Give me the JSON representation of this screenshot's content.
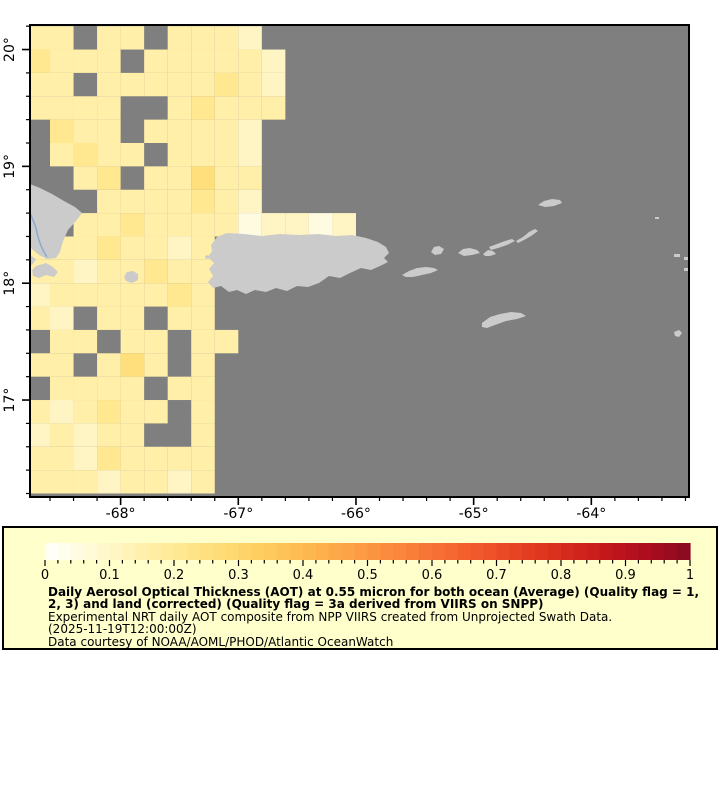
{
  "map": {
    "colors": {
      "ocean_nodata": "#7F7F7F",
      "land": "#CBCBCB",
      "river": "#85A9CE",
      "frame": "#000000",
      "background": "#FFFFFF"
    },
    "x_axis": {
      "range_lon": [
        -68.77,
        -63.17
      ],
      "minor_step_deg": 0.2,
      "major": [
        {
          "lon": -68,
          "label": "-68°"
        },
        {
          "lon": -67,
          "label": "-67°"
        },
        {
          "lon": -66,
          "label": "-66°"
        },
        {
          "lon": -65,
          "label": "-65°"
        },
        {
          "lon": -64,
          "label": "-64°"
        }
      ]
    },
    "y_axis": {
      "range_lat": [
        16.17,
        20.21
      ],
      "minor_step_deg": 0.2,
      "major": [
        {
          "lat": 20,
          "label": "20°"
        },
        {
          "lat": 19,
          "label": "19°"
        },
        {
          "lat": 18,
          "label": "18°"
        },
        {
          "lat": 17,
          "label": "17°"
        }
      ]
    },
    "aot_grid": {
      "origin_lon": -68.8,
      "origin_lat": 20.2,
      "cell_deg": 0.2,
      "palette": {
        "a": "#FFFBE0",
        "b": "#FFF5C4",
        "c": "#FFEFA9",
        "d": "#FFE88F",
        "e": "#FFDF7B",
        "f": "#FFD466"
      },
      "palette_values": {
        "a": 0.02,
        "b": 0.05,
        "c": 0.1,
        "d": 0.15,
        "e": 0.2,
        "f": 0.25
      },
      "rows": [
        "cc.cc.cccb..................",
        "dccc.cccccb.................",
        "cc.cccccdcb.................",
        "cccc..cdccc.................",
        ".dcc.ccccb..................",
        ".cdcc.cccb..................",
        "..cd.ccecc..................",
        "...ccccdcb..................",
        "..ccdccccabbab..............",
        "cccdccbc....................",
        "ccbccdcc....................",
        "bcccccdc....................",
        "cb.cc.cc....................",
        ".cc.cc.cc...................",
        "cc.cec.c....................",
        ".cccc.cc....................",
        "cbcdcc.c....................",
        "bcbcc..c....................",
        "ccbdcccc....................",
        "cccbccbc...................."
      ]
    },
    "land_shapes": [
      {
        "name": "hispaniola-east-tip",
        "points": [
          [
            30,
            184
          ],
          [
            40,
            188
          ],
          [
            52,
            194
          ],
          [
            64,
            201
          ],
          [
            75,
            207
          ],
          [
            82,
            213
          ],
          [
            76,
            221
          ],
          [
            68,
            230
          ],
          [
            63,
            241
          ],
          [
            60,
            252
          ],
          [
            56,
            258
          ],
          [
            47,
            259
          ],
          [
            39,
            255
          ],
          [
            33,
            250
          ],
          [
            30,
            247
          ]
        ]
      },
      {
        "name": "hispaniola-south-coast",
        "points": [
          [
            30,
            255
          ],
          [
            36,
            259
          ],
          [
            33,
            264
          ],
          [
            30,
            266
          ]
        ]
      },
      {
        "name": "saona-area",
        "points": [
          [
            36,
            266
          ],
          [
            46,
            263
          ],
          [
            53,
            267
          ],
          [
            58,
            272
          ],
          [
            54,
            277
          ],
          [
            46,
            275
          ],
          [
            39,
            278
          ],
          [
            33,
            276
          ],
          [
            32,
            270
          ]
        ]
      },
      {
        "name": "mona-island",
        "points": [
          [
            124,
            277
          ],
          [
            127,
            272
          ],
          [
            133,
            271
          ],
          [
            138,
            274
          ],
          [
            138,
            280
          ],
          [
            132,
            283
          ],
          [
            126,
            281
          ]
        ]
      },
      {
        "name": "desecheo-island",
        "points": [
          [
            205,
            256
          ],
          [
            208,
            255
          ],
          [
            210,
            257
          ],
          [
            208,
            259
          ],
          [
            205,
            258
          ]
        ]
      },
      {
        "name": "puerto-rico",
        "points": [
          [
            211,
            245
          ],
          [
            217,
            237
          ],
          [
            227,
            233
          ],
          [
            244,
            234
          ],
          [
            262,
            236
          ],
          [
            280,
            234
          ],
          [
            300,
            235
          ],
          [
            318,
            234
          ],
          [
            336,
            236
          ],
          [
            352,
            235
          ],
          [
            366,
            238
          ],
          [
            378,
            242
          ],
          [
            386,
            247
          ],
          [
            389,
            253
          ],
          [
            384,
            258
          ],
          [
            388,
            262
          ],
          [
            380,
            266
          ],
          [
            371,
            270
          ],
          [
            361,
            268
          ],
          [
            350,
            273
          ],
          [
            340,
            278
          ],
          [
            329,
            276
          ],
          [
            319,
            283
          ],
          [
            308,
            287
          ],
          [
            297,
            286
          ],
          [
            287,
            291
          ],
          [
            276,
            288
          ],
          [
            266,
            292
          ],
          [
            255,
            290
          ],
          [
            246,
            294
          ],
          [
            237,
            290
          ],
          [
            229,
            292
          ],
          [
            221,
            286
          ],
          [
            213,
            288
          ],
          [
            208,
            282
          ],
          [
            213,
            276
          ],
          [
            209,
            269
          ],
          [
            214,
            263
          ],
          [
            208,
            257
          ],
          [
            212,
            251
          ]
        ]
      },
      {
        "name": "vieques",
        "points": [
          [
            402,
            275
          ],
          [
            409,
            271
          ],
          [
            417,
            268
          ],
          [
            426,
            267
          ],
          [
            434,
            268
          ],
          [
            438,
            270
          ],
          [
            431,
            273
          ],
          [
            422,
            275
          ],
          [
            413,
            277
          ],
          [
            406,
            277
          ]
        ]
      },
      {
        "name": "culebra",
        "points": [
          [
            431,
            252
          ],
          [
            434,
            247
          ],
          [
            439,
            246
          ],
          [
            444,
            249
          ],
          [
            441,
            254
          ],
          [
            435,
            255
          ]
        ]
      },
      {
        "name": "st-thomas",
        "points": [
          [
            458,
            253
          ],
          [
            463,
            249
          ],
          [
            470,
            248
          ],
          [
            477,
            250
          ],
          [
            480,
            253
          ],
          [
            472,
            255
          ],
          [
            464,
            256
          ]
        ]
      },
      {
        "name": "st-john",
        "points": [
          [
            483,
            254
          ],
          [
            488,
            250
          ],
          [
            493,
            251
          ],
          [
            496,
            254
          ],
          [
            490,
            256
          ],
          [
            485,
            256
          ]
        ]
      },
      {
        "name": "tortola",
        "points": [
          [
            489,
            247
          ],
          [
            497,
            244
          ],
          [
            505,
            241
          ],
          [
            512,
            239
          ],
          [
            515,
            241
          ],
          [
            507,
            245
          ],
          [
            498,
            248
          ],
          [
            491,
            250
          ]
        ]
      },
      {
        "name": "virgin-gorda",
        "points": [
          [
            516,
            241
          ],
          [
            523,
            237
          ],
          [
            529,
            232
          ],
          [
            535,
            229
          ],
          [
            538,
            231
          ],
          [
            531,
            236
          ],
          [
            524,
            240
          ],
          [
            518,
            243
          ]
        ]
      },
      {
        "name": "anegada",
        "points": [
          [
            538,
            205
          ],
          [
            544,
            201
          ],
          [
            552,
            199
          ],
          [
            560,
            200
          ],
          [
            562,
            203
          ],
          [
            554,
            206
          ],
          [
            545,
            207
          ]
        ]
      },
      {
        "name": "st-croix",
        "points": [
          [
            482,
            323
          ],
          [
            490,
            317
          ],
          [
            500,
            314
          ],
          [
            511,
            312
          ],
          [
            521,
            313
          ],
          [
            526,
            316
          ],
          [
            517,
            319
          ],
          [
            506,
            321
          ],
          [
            495,
            325
          ],
          [
            487,
            328
          ],
          [
            482,
            327
          ]
        ]
      },
      {
        "name": "sombrero-speck",
        "points": [
          [
            655,
            217
          ],
          [
            659,
            217
          ],
          [
            659,
            219
          ],
          [
            655,
            219
          ]
        ]
      },
      {
        "name": "anguilla-speck",
        "points": [
          [
            674,
            254
          ],
          [
            680,
            254
          ],
          [
            680,
            257
          ],
          [
            674,
            257
          ]
        ]
      },
      {
        "name": "st-martin-speck",
        "points": [
          [
            684,
            257
          ],
          [
            688,
            257
          ],
          [
            688,
            260
          ],
          [
            684,
            260
          ]
        ]
      },
      {
        "name": "st-barth-speck",
        "points": [
          [
            684,
            268
          ],
          [
            688,
            268
          ],
          [
            688,
            271
          ],
          [
            684,
            271
          ]
        ]
      },
      {
        "name": "saba-speck",
        "points": [
          [
            674,
            332
          ],
          [
            679,
            330
          ],
          [
            682,
            333
          ],
          [
            679,
            337
          ],
          [
            675,
            336
          ]
        ]
      }
    ],
    "river": {
      "name": "hispaniola-river",
      "points": [
        [
          30,
          213
        ],
        [
          33,
          220
        ],
        [
          36,
          228
        ],
        [
          38,
          237
        ],
        [
          41,
          246
        ],
        [
          44,
          252
        ],
        [
          47,
          257
        ]
      ]
    }
  },
  "legend": {
    "background": "#FFFFCC",
    "border_color": "#000000",
    "colorbar": {
      "min": 0,
      "max": 1,
      "steps": 50,
      "minor_tick_step": 0.02,
      "major_tick_step": 0.1,
      "tick_labels": [
        "0",
        "0.1",
        "0.2",
        "0.3",
        "0.4",
        "0.5",
        "0.6",
        "0.7",
        "0.8",
        "0.9",
        "1"
      ],
      "stops": [
        [
          0.0,
          "#FFFFFC"
        ],
        [
          0.04,
          "#FFFDE8"
        ],
        [
          0.1,
          "#FFF7C8"
        ],
        [
          0.16,
          "#FFEFA8"
        ],
        [
          0.22,
          "#FEE68C"
        ],
        [
          0.28,
          "#FEDA74"
        ],
        [
          0.34,
          "#FECC60"
        ],
        [
          0.4,
          "#FDBA50"
        ],
        [
          0.46,
          "#FCA648"
        ],
        [
          0.52,
          "#FB9040"
        ],
        [
          0.58,
          "#F87A38"
        ],
        [
          0.64,
          "#F4642F"
        ],
        [
          0.7,
          "#EC4E27"
        ],
        [
          0.76,
          "#E13A20"
        ],
        [
          0.82,
          "#D2261C"
        ],
        [
          0.88,
          "#C0151B"
        ],
        [
          0.94,
          "#A90B1E"
        ],
        [
          1.0,
          "#870B22"
        ]
      ]
    },
    "caption": {
      "bold1": "Daily Aerosol Optical Thickness (AOT) at 0.55 micron for both ocean (Average) (Quality flag = 1,",
      "bold2": "2, 3) and land (corrected) (Quality flag = 3a derived from VIIRS on SNPP)",
      "line3": "Experimental NRT daily AOT composite from NPP VIIRS created from Unprojected Swath Data.",
      "line4": "(2025-11-19T12:00:00Z)",
      "line5": "Data courtesy of NOAA/AOML/PHOD/Atlantic OceanWatch"
    }
  }
}
